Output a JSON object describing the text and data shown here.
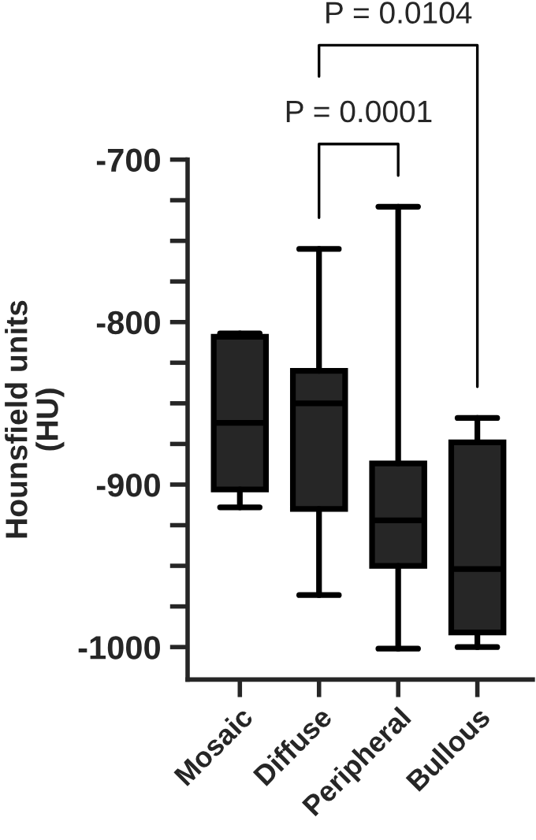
{
  "chart_data": {
    "type": "box",
    "categories": [
      "Mosaic",
      "Diffuse",
      "Peripheral",
      "Bullous"
    ],
    "ylabel": "Hounsfield units\n(HU)",
    "color": "#262626",
    "boxes": [
      {
        "low": -914,
        "q1": -903,
        "median": -862,
        "q3": -809,
        "high": -807
      },
      {
        "low": -968,
        "q1": -915,
        "median": -850,
        "q3": -830,
        "high": -755
      },
      {
        "low": -1001,
        "q1": -950,
        "median": -922,
        "q3": -887,
        "high": -729
      },
      {
        "low": -1000,
        "q1": -991,
        "median": -952,
        "q3": -874,
        "high": -859
      }
    ],
    "ylim": [
      -1020,
      -700
    ],
    "yticks": [
      -1000,
      {
        "value": -975,
        "label": null
      },
      {
        "value": -950,
        "label": null
      },
      {
        "value": -925,
        "label": null
      },
      -900,
      {
        "value": -875,
        "label": null
      },
      {
        "value": -850,
        "label": null
      },
      {
        "value": -825,
        "label": null
      },
      -800,
      {
        "value": -775,
        "label": null
      },
      {
        "value": -750,
        "label": null
      },
      {
        "value": -725,
        "label": null
      },
      -700
    ],
    "annotations": [
      "P = 0.0001",
      "P = 0.0104"
    ],
    "grid": false,
    "legend": false
  }
}
